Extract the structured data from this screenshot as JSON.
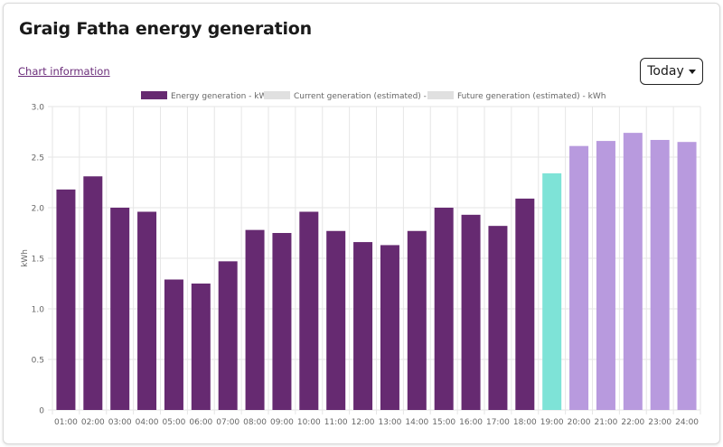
{
  "title": "Graig Fatha energy generation",
  "chart_info_link": "Chart information",
  "period_selector": {
    "value": "Today"
  },
  "colors": {
    "energy": "#662a71",
    "current": "#7ee3d7",
    "future": "#b89ade",
    "legend_current": "#e0e0e0",
    "legend_future": "#e0e0e0",
    "grid": "#e6e6e6"
  },
  "chart_data": {
    "type": "bar",
    "title": "",
    "xlabel": "",
    "ylabel": "kWh",
    "ylim": [
      0,
      3
    ],
    "yticks": [
      "0",
      "0.5",
      "1.0",
      "1.5",
      "2.0",
      "2.5",
      "3.0"
    ],
    "legend": [
      "Energy generation - kWh",
      "Current generation (estimated) - kWh",
      "Future generation (estimated) - kWh"
    ],
    "legend_position": "top",
    "categories": [
      "01:00",
      "02:00",
      "03:00",
      "04:00",
      "05:00",
      "06:00",
      "07:00",
      "08:00",
      "09:00",
      "10:00",
      "11:00",
      "12:00",
      "13:00",
      "14:00",
      "15:00",
      "16:00",
      "17:00",
      "18:00",
      "19:00",
      "20:00",
      "21:00",
      "22:00",
      "23:00",
      "24:00"
    ],
    "values": [
      2.18,
      2.31,
      2.0,
      1.96,
      1.29,
      1.25,
      1.47,
      1.78,
      1.75,
      1.96,
      1.77,
      1.66,
      1.63,
      1.77,
      2.0,
      1.93,
      1.82,
      2.09,
      2.34,
      2.61,
      2.66,
      2.74,
      2.67,
      2.65
    ],
    "series_index": [
      0,
      0,
      0,
      0,
      0,
      0,
      0,
      0,
      0,
      0,
      0,
      0,
      0,
      0,
      0,
      0,
      0,
      0,
      1,
      2,
      2,
      2,
      2,
      2
    ]
  }
}
